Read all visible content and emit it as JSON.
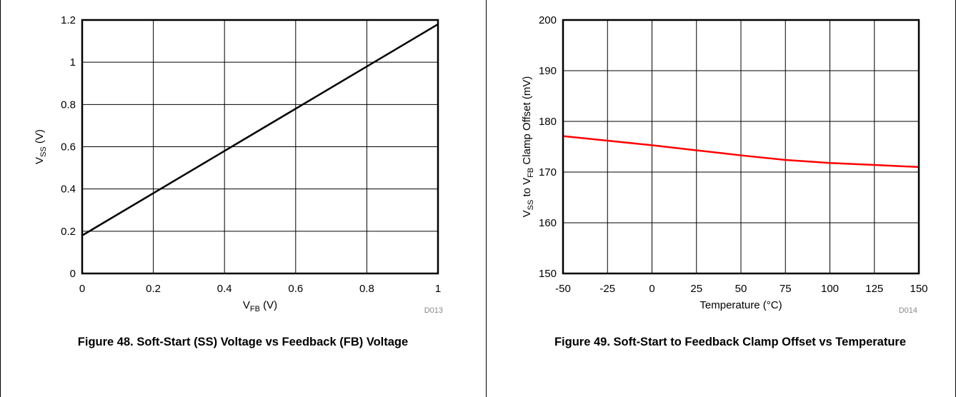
{
  "figures": [
    {
      "caption": "Figure 48. Soft-Start (SS) Voltage vs Feedback (FB) Voltage",
      "code": "D013"
    },
    {
      "caption": "Figure 49. Soft-Start to Feedback Clamp Offset vs Temperature",
      "code": "D014"
    }
  ],
  "chart_data": [
    {
      "type": "line",
      "title": "Figure 48. Soft-Start (SS) Voltage vs Feedback (FB) Voltage",
      "xlabel": {
        "main": "V",
        "sub": "FB",
        "suffix": " (V)"
      },
      "ylabel": {
        "main": "V",
        "sub": "SS",
        "suffix": " (V)"
      },
      "xlim": [
        0,
        1
      ],
      "ylim": [
        0,
        1.2
      ],
      "xticks": [
        0,
        0.2,
        0.4,
        0.6,
        0.8,
        1
      ],
      "yticks": [
        0,
        0.2,
        0.4,
        0.6,
        0.8,
        1,
        1.2
      ],
      "xtick_labels": [
        "0",
        "0.2",
        "0.4",
        "0.6",
        "0.8",
        "1"
      ],
      "ytick_labels": [
        "0",
        "0.2",
        "0.4",
        "0.6",
        "0.8",
        "1",
        "1.2"
      ],
      "grid": true,
      "series": [
        {
          "color": "#000000",
          "x": [
            0,
            1
          ],
          "y": [
            0.18,
            1.18
          ]
        }
      ]
    },
    {
      "type": "line",
      "title": "Figure 49. Soft-Start to Feedback Clamp Offset vs Temperature",
      "xlabel": {
        "main": "Temperature (°C)",
        "sub": "",
        "suffix": ""
      },
      "ylabel": {
        "main": "V",
        "sub": "SS",
        "mid": " to V",
        "sub2": "FB",
        "suffix": " Clamp Offset (mV)"
      },
      "xlim": [
        -50,
        150
      ],
      "ylim": [
        150,
        200
      ],
      "xticks": [
        -50,
        -25,
        0,
        25,
        50,
        75,
        100,
        125,
        150
      ],
      "yticks": [
        150,
        160,
        170,
        180,
        190,
        200
      ],
      "xtick_labels": [
        "-50",
        "-25",
        "0",
        "25",
        "50",
        "75",
        "100",
        "125",
        "150"
      ],
      "ytick_labels": [
        "150",
        "160",
        "170",
        "180",
        "190",
        "200"
      ],
      "grid": true,
      "series": [
        {
          "color": "#ff0000",
          "x": [
            -50,
            -25,
            0,
            25,
            50,
            75,
            100,
            125,
            150
          ],
          "y": [
            177.1,
            176.2,
            175.3,
            174.3,
            173.3,
            172.4,
            171.8,
            171.4,
            171.0
          ]
        }
      ]
    }
  ]
}
